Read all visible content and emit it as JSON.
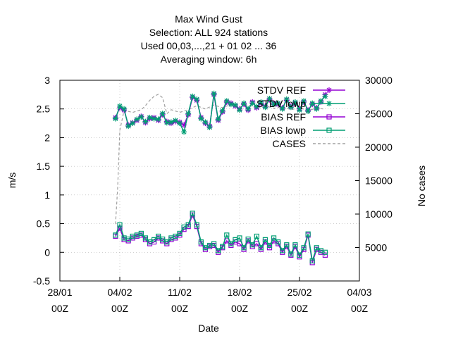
{
  "chart_data": {
    "type": "line",
    "title_lines": [
      "Max Wind Gust",
      "Selection: ALL    924 stations",
      "Used  00,03,...,21  + 01 02 ... 36",
      "Averaging window:  6h"
    ],
    "xlabel": "Date",
    "ylabel": "m/s",
    "y2label": "No cases",
    "xlim": [
      "2022-01-28 00Z",
      "2022-03-04 00Z"
    ],
    "ylim": [
      -0.5,
      3
    ],
    "y2lim": [
      0,
      30000
    ],
    "x_ticks": [
      {
        "date": "2022-01-28",
        "line1": "28/01",
        "line2": "00Z"
      },
      {
        "date": "2022-02-04",
        "line1": "04/02",
        "line2": "00Z"
      },
      {
        "date": "2022-02-11",
        "line1": "11/02",
        "line2": "00Z"
      },
      {
        "date": "2022-02-18",
        "line1": "18/02",
        "line2": "00Z"
      },
      {
        "date": "2022-02-25",
        "line1": "25/02",
        "line2": "00Z"
      },
      {
        "date": "2022-03-04",
        "line1": "04/03",
        "line2": "00Z"
      }
    ],
    "y_ticks": [
      "-0.5",
      "0",
      "0.5",
      "1",
      "1.5",
      "2",
      "2.5",
      "3"
    ],
    "y2_ticks": [
      "5000",
      "10000",
      "15000",
      "20000",
      "25000",
      "30000"
    ],
    "legend_position": "top-right",
    "series": [
      {
        "name": "STDV REF",
        "color": "#9400d3",
        "marker": "star",
        "axis": "y",
        "points": [
          [
            "2022-02-03 12Z",
            2.35
          ],
          [
            "2022-02-04 00Z",
            2.52
          ],
          [
            "2022-02-04 12Z",
            2.48
          ],
          [
            "2022-02-05 00Z",
            2.22
          ],
          [
            "2022-02-05 12Z",
            2.26
          ],
          [
            "2022-02-06 00Z",
            2.3
          ],
          [
            "2022-02-06 12Z",
            2.37
          ],
          [
            "2022-02-07 00Z",
            2.26
          ],
          [
            "2022-02-07 12Z",
            2.33
          ],
          [
            "2022-02-08 00Z",
            2.35
          ],
          [
            "2022-02-08 12Z",
            2.3
          ],
          [
            "2022-02-09 00Z",
            2.4
          ],
          [
            "2022-02-09 12Z",
            2.28
          ],
          [
            "2022-02-10 00Z",
            2.25
          ],
          [
            "2022-02-10 12Z",
            2.28
          ],
          [
            "2022-02-11 00Z",
            2.27
          ],
          [
            "2022-02-11 12Z",
            2.22
          ],
          [
            "2022-02-12 00Z",
            2.4
          ],
          [
            "2022-02-12 12Z",
            2.7
          ],
          [
            "2022-02-13 00Z",
            2.65
          ],
          [
            "2022-02-13 12Z",
            2.35
          ],
          [
            "2022-02-14 00Z",
            2.25
          ],
          [
            "2022-02-14 12Z",
            2.2
          ],
          [
            "2022-02-15 00Z",
            2.75
          ],
          [
            "2022-02-15 12Z",
            2.3
          ],
          [
            "2022-02-16 00Z",
            2.45
          ],
          [
            "2022-02-16 12Z",
            2.62
          ],
          [
            "2022-02-17 00Z",
            2.6
          ],
          [
            "2022-02-17 12Z",
            2.55
          ],
          [
            "2022-02-18 00Z",
            2.5
          ],
          [
            "2022-02-18 12Z",
            2.58
          ],
          [
            "2022-02-19 00Z",
            2.48
          ],
          [
            "2022-02-19 12Z",
            2.62
          ],
          [
            "2022-02-20 00Z",
            2.52
          ],
          [
            "2022-02-20 12Z",
            2.6
          ],
          [
            "2022-02-21 00Z",
            2.55
          ],
          [
            "2022-02-21 12Z",
            2.66
          ],
          [
            "2022-02-22 00Z",
            2.6
          ],
          [
            "2022-02-22 12Z",
            2.58
          ],
          [
            "2022-02-23 00Z",
            2.52
          ],
          [
            "2022-02-23 12Z",
            2.65
          ],
          [
            "2022-02-24 00Z",
            2.55
          ],
          [
            "2022-02-24 12Z",
            2.6
          ],
          [
            "2022-02-25 00Z",
            2.5
          ],
          [
            "2022-02-25 12Z",
            2.62
          ],
          [
            "2022-02-26 00Z",
            2.48
          ],
          [
            "2022-02-26 12Z",
            2.58
          ],
          [
            "2022-02-27 00Z",
            2.52
          ],
          [
            "2022-02-27 12Z",
            2.62
          ],
          [
            "2022-02-28 00Z",
            2.75
          ]
        ]
      },
      {
        "name": "STDV lowp",
        "color": "#009e73",
        "marker": "star",
        "axis": "y",
        "points": [
          [
            "2022-02-03 12Z",
            2.33
          ],
          [
            "2022-02-04 00Z",
            2.55
          ],
          [
            "2022-02-04 12Z",
            2.5
          ],
          [
            "2022-02-05 00Z",
            2.2
          ],
          [
            "2022-02-05 12Z",
            2.25
          ],
          [
            "2022-02-06 00Z",
            2.32
          ],
          [
            "2022-02-06 12Z",
            2.36
          ],
          [
            "2022-02-07 00Z",
            2.28
          ],
          [
            "2022-02-07 12Z",
            2.35
          ],
          [
            "2022-02-08 00Z",
            2.33
          ],
          [
            "2022-02-08 12Z",
            2.32
          ],
          [
            "2022-02-09 00Z",
            2.42
          ],
          [
            "2022-02-09 12Z",
            2.26
          ],
          [
            "2022-02-10 00Z",
            2.27
          ],
          [
            "2022-02-10 12Z",
            2.3
          ],
          [
            "2022-02-11 00Z",
            2.25
          ],
          [
            "2022-02-11 12Z",
            2.1
          ],
          [
            "2022-02-12 00Z",
            2.42
          ],
          [
            "2022-02-12 12Z",
            2.72
          ],
          [
            "2022-02-13 00Z",
            2.67
          ],
          [
            "2022-02-13 12Z",
            2.33
          ],
          [
            "2022-02-14 00Z",
            2.27
          ],
          [
            "2022-02-14 12Z",
            2.18
          ],
          [
            "2022-02-15 00Z",
            2.77
          ],
          [
            "2022-02-15 12Z",
            2.32
          ],
          [
            "2022-02-16 00Z",
            2.47
          ],
          [
            "2022-02-16 12Z",
            2.64
          ],
          [
            "2022-02-17 00Z",
            2.58
          ],
          [
            "2022-02-17 12Z",
            2.57
          ],
          [
            "2022-02-18 00Z",
            2.48
          ],
          [
            "2022-02-18 12Z",
            2.6
          ],
          [
            "2022-02-19 00Z",
            2.5
          ],
          [
            "2022-02-19 12Z",
            2.6
          ],
          [
            "2022-02-20 00Z",
            2.54
          ],
          [
            "2022-02-20 12Z",
            2.62
          ],
          [
            "2022-02-21 00Z",
            2.53
          ],
          [
            "2022-02-21 12Z",
            2.68
          ],
          [
            "2022-02-22 00Z",
            2.58
          ],
          [
            "2022-02-22 12Z",
            2.6
          ],
          [
            "2022-02-23 00Z",
            2.5
          ],
          [
            "2022-02-23 12Z",
            2.67
          ],
          [
            "2022-02-24 00Z",
            2.53
          ],
          [
            "2022-02-24 12Z",
            2.62
          ],
          [
            "2022-02-25 00Z",
            2.48
          ],
          [
            "2022-02-25 12Z",
            2.64
          ],
          [
            "2022-02-26 00Z",
            2.46
          ],
          [
            "2022-02-26 12Z",
            2.6
          ],
          [
            "2022-02-27 00Z",
            2.5
          ],
          [
            "2022-02-27 12Z",
            2.64
          ],
          [
            "2022-02-28 00Z",
            2.72
          ]
        ]
      },
      {
        "name": "BIAS REF",
        "color": "#9400d3",
        "marker": "square",
        "axis": "y",
        "points": [
          [
            "2022-02-03 12Z",
            0.28
          ],
          [
            "2022-02-04 00Z",
            0.42
          ],
          [
            "2022-02-04 12Z",
            0.22
          ],
          [
            "2022-02-05 00Z",
            0.2
          ],
          [
            "2022-02-05 12Z",
            0.25
          ],
          [
            "2022-02-06 00Z",
            0.28
          ],
          [
            "2022-02-06 12Z",
            0.3
          ],
          [
            "2022-02-07 00Z",
            0.22
          ],
          [
            "2022-02-07 12Z",
            0.15
          ],
          [
            "2022-02-08 00Z",
            0.18
          ],
          [
            "2022-02-08 12Z",
            0.25
          ],
          [
            "2022-02-09 00Z",
            0.2
          ],
          [
            "2022-02-09 12Z",
            0.15
          ],
          [
            "2022-02-10 00Z",
            0.22
          ],
          [
            "2022-02-10 12Z",
            0.25
          ],
          [
            "2022-02-11 00Z",
            0.3
          ],
          [
            "2022-02-11 12Z",
            0.4
          ],
          [
            "2022-02-12 00Z",
            0.45
          ],
          [
            "2022-02-12 12Z",
            0.65
          ],
          [
            "2022-02-13 00Z",
            0.45
          ],
          [
            "2022-02-13 12Z",
            0.15
          ],
          [
            "2022-02-14 00Z",
            0.05
          ],
          [
            "2022-02-14 12Z",
            0.1
          ],
          [
            "2022-02-15 00Z",
            0.12
          ],
          [
            "2022-02-15 12Z",
            0.0
          ],
          [
            "2022-02-16 00Z",
            0.08
          ],
          [
            "2022-02-16 12Z",
            0.2
          ],
          [
            "2022-02-17 00Z",
            0.12
          ],
          [
            "2022-02-17 12Z",
            0.18
          ],
          [
            "2022-02-18 00Z",
            0.15
          ],
          [
            "2022-02-18 12Z",
            0.05
          ],
          [
            "2022-02-19 00Z",
            0.2
          ],
          [
            "2022-02-19 12Z",
            0.1
          ],
          [
            "2022-02-20 00Z",
            0.15
          ],
          [
            "2022-02-20 12Z",
            0.05
          ],
          [
            "2022-02-21 00Z",
            0.18
          ],
          [
            "2022-02-21 12Z",
            0.08
          ],
          [
            "2022-02-22 00Z",
            0.2
          ],
          [
            "2022-02-22 12Z",
            0.15
          ],
          [
            "2022-02-23 00Z",
            0.0
          ],
          [
            "2022-02-23 12Z",
            0.1
          ],
          [
            "2022-02-24 00Z",
            -0.05
          ],
          [
            "2022-02-24 12Z",
            0.1
          ],
          [
            "2022-02-25 00Z",
            -0.08
          ],
          [
            "2022-02-25 12Z",
            0.05
          ],
          [
            "2022-02-26 00Z",
            0.3
          ],
          [
            "2022-02-26 12Z",
            -0.18
          ],
          [
            "2022-02-27 00Z",
            0.05
          ],
          [
            "2022-02-27 12Z",
            0.0
          ],
          [
            "2022-02-28 00Z",
            -0.05
          ]
        ]
      },
      {
        "name": "BIAS lowp",
        "color": "#009e73",
        "marker": "square",
        "axis": "y",
        "points": [
          [
            "2022-02-03 12Z",
            0.3
          ],
          [
            "2022-02-04 00Z",
            0.48
          ],
          [
            "2022-02-04 12Z",
            0.25
          ],
          [
            "2022-02-05 00Z",
            0.23
          ],
          [
            "2022-02-05 12Z",
            0.28
          ],
          [
            "2022-02-06 00Z",
            0.3
          ],
          [
            "2022-02-06 12Z",
            0.33
          ],
          [
            "2022-02-07 00Z",
            0.25
          ],
          [
            "2022-02-07 12Z",
            0.18
          ],
          [
            "2022-02-08 00Z",
            0.22
          ],
          [
            "2022-02-08 12Z",
            0.28
          ],
          [
            "2022-02-09 00Z",
            0.23
          ],
          [
            "2022-02-09 12Z",
            0.18
          ],
          [
            "2022-02-10 00Z",
            0.25
          ],
          [
            "2022-02-10 12Z",
            0.28
          ],
          [
            "2022-02-11 00Z",
            0.33
          ],
          [
            "2022-02-11 12Z",
            0.44
          ],
          [
            "2022-02-12 00Z",
            0.48
          ],
          [
            "2022-02-12 12Z",
            0.68
          ],
          [
            "2022-02-13 00Z",
            0.48
          ],
          [
            "2022-02-13 12Z",
            0.18
          ],
          [
            "2022-02-14 00Z",
            0.08
          ],
          [
            "2022-02-14 12Z",
            0.12
          ],
          [
            "2022-02-15 00Z",
            0.15
          ],
          [
            "2022-02-15 12Z",
            0.03
          ],
          [
            "2022-02-16 00Z",
            0.1
          ],
          [
            "2022-02-16 12Z",
            0.3
          ],
          [
            "2022-02-17 00Z",
            0.15
          ],
          [
            "2022-02-17 12Z",
            0.22
          ],
          [
            "2022-02-18 00Z",
            0.25
          ],
          [
            "2022-02-18 12Z",
            0.08
          ],
          [
            "2022-02-19 00Z",
            0.23
          ],
          [
            "2022-02-19 12Z",
            0.13
          ],
          [
            "2022-02-20 00Z",
            0.28
          ],
          [
            "2022-02-20 12Z",
            0.08
          ],
          [
            "2022-02-21 00Z",
            0.22
          ],
          [
            "2022-02-21 12Z",
            0.12
          ],
          [
            "2022-02-22 00Z",
            0.25
          ],
          [
            "2022-02-22 12Z",
            0.18
          ],
          [
            "2022-02-23 00Z",
            0.03
          ],
          [
            "2022-02-23 12Z",
            0.13
          ],
          [
            "2022-02-24 00Z",
            -0.03
          ],
          [
            "2022-02-24 12Z",
            0.13
          ],
          [
            "2022-02-25 00Z",
            -0.05
          ],
          [
            "2022-02-25 12Z",
            0.08
          ],
          [
            "2022-02-26 00Z",
            0.32
          ],
          [
            "2022-02-26 12Z",
            -0.15
          ],
          [
            "2022-02-27 00Z",
            0.08
          ],
          [
            "2022-02-27 12Z",
            0.03
          ],
          [
            "2022-02-28 00Z",
            0.0
          ]
        ]
      },
      {
        "name": "CASES",
        "color": "#a0a0a0",
        "marker": "none",
        "dash": "dashed",
        "axis": "y2",
        "points": [
          [
            "2022-02-03 12Z",
            8500
          ],
          [
            "2022-02-03 18Z",
            14000
          ],
          [
            "2022-02-04 00Z",
            22500
          ],
          [
            "2022-02-04 12Z",
            25500
          ],
          [
            "2022-02-05 12Z",
            25200
          ],
          [
            "2022-02-06 12Z",
            25600
          ],
          [
            "2022-02-07 00Z",
            26200
          ],
          [
            "2022-02-07 12Z",
            27000
          ],
          [
            "2022-02-08 00Z",
            27600
          ],
          [
            "2022-02-08 12Z",
            27900
          ],
          [
            "2022-02-09 00Z",
            27400
          ],
          [
            "2022-02-09 12Z",
            25000
          ],
          [
            "2022-02-10 00Z",
            25600
          ],
          [
            "2022-02-11 00Z",
            25200
          ],
          [
            "2022-02-12 00Z",
            25600
          ],
          [
            "2022-02-13 00Z",
            26200
          ],
          [
            "2022-02-14 00Z",
            25700
          ],
          [
            "2022-02-15 00Z",
            26300
          ],
          [
            "2022-02-16 00Z",
            25900
          ],
          [
            "2022-02-17 00Z",
            26400
          ],
          [
            "2022-02-18 00Z",
            26000
          ],
          [
            "2022-02-19 00Z",
            26300
          ],
          [
            "2022-02-20 00Z",
            25900
          ],
          [
            "2022-02-21 00Z",
            26200
          ],
          [
            "2022-02-22 00Z",
            25800
          ],
          [
            "2022-02-23 00Z",
            26100
          ],
          [
            "2022-02-24 00Z",
            25600
          ],
          [
            "2022-02-25 00Z",
            25900
          ],
          [
            "2022-02-26 00Z",
            25500
          ],
          [
            "2022-02-27 00Z",
            25800
          ],
          [
            "2022-02-28 00Z",
            25700
          ]
        ]
      }
    ]
  }
}
